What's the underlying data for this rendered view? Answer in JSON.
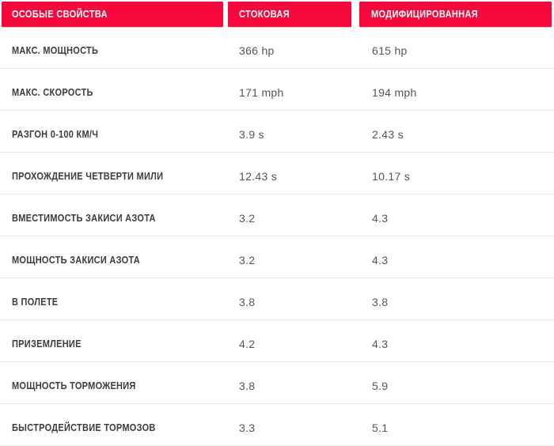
{
  "table": {
    "header": {
      "col_features": "ОСОБЫЕ СВОЙСТВА",
      "col_stock": "СТОКОВАЯ",
      "col_modified": "МОДИФИЦИРОВАННАЯ"
    },
    "rows": [
      {
        "label": "МАКС. МОЩНОСТЬ",
        "stock": "366 hp",
        "modified": "615 hp"
      },
      {
        "label": "МАКС. СКОРОСТЬ",
        "stock": "171 mph",
        "modified": "194 mph"
      },
      {
        "label": "РАЗГОН 0-100 КМ/Ч",
        "stock": "3.9 s",
        "modified": "2.43 s"
      },
      {
        "label": "ПРОХОЖДЕНИЕ ЧЕТВЕРТИ МИЛИ",
        "stock": "12.43 s",
        "modified": "10.17 s"
      },
      {
        "label": "ВМЕСТИМОСТЬ ЗАКИСИ АЗОТА",
        "stock": "3.2",
        "modified": "4.3"
      },
      {
        "label": "МОЩНОСТЬ ЗАКИСИ АЗОТА",
        "stock": "3.2",
        "modified": "4.3"
      },
      {
        "label": "В ПОЛЕТЕ",
        "stock": "3.8",
        "modified": "3.8"
      },
      {
        "label": "ПРИЗЕМЛЕНИЕ",
        "stock": "4.2",
        "modified": "4.3"
      },
      {
        "label": "МОЩНОСТЬ ТОРМОЖЕНИЯ",
        "stock": "3.8",
        "modified": "5.9"
      },
      {
        "label": "БЫСТРОДЕЙСТВИЕ ТОРМОЗОВ",
        "stock": "3.3",
        "modified": "5.1"
      }
    ],
    "colors": {
      "header_bg": "#F5093C",
      "header_text": "#FFFFFF",
      "label_text": "#3C3C3C",
      "value_text": "#555555",
      "separator": "#E9E9E9"
    }
  }
}
